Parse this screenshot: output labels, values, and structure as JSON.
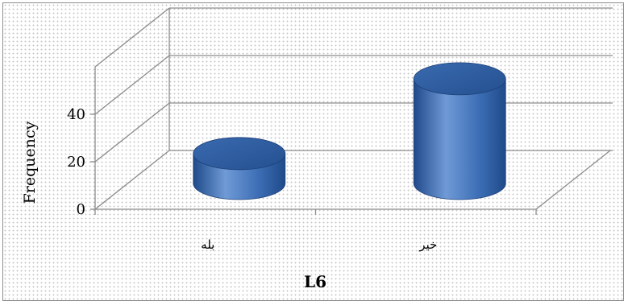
{
  "chart_data": {
    "type": "bar",
    "style": "3d-cylinder",
    "categories": [
      "بله",
      "خیر"
    ],
    "values": [
      12,
      42
    ],
    "xlabel": "L6",
    "ylabel": "Frequency",
    "ylim": [
      0,
      60
    ],
    "yticks": [
      0,
      20,
      40
    ],
    "grid": true,
    "legend": "none",
    "colors": {
      "bar_light": "#6f9ad6",
      "bar_mid": "#3e6fb6",
      "bar_dark": "#1f4a8a",
      "bar_top": "#2e5da3",
      "grid": "#8c8c8c"
    }
  }
}
